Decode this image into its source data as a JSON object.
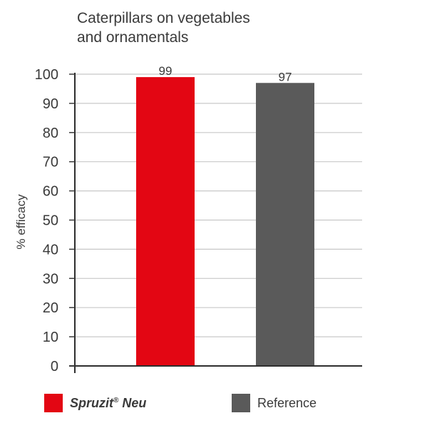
{
  "chart_data": {
    "type": "bar",
    "title_lines": [
      "Caterpillars on vegetables",
      "and ornamentals"
    ],
    "ylabel": "% efficacy",
    "xlabel": "",
    "ylim": [
      0,
      100
    ],
    "yticks": [
      0,
      10,
      20,
      30,
      40,
      50,
      60,
      70,
      80,
      90,
      100
    ],
    "grid": true,
    "legend_position": "bottom",
    "series": [
      {
        "name_main": "Spruzit",
        "name_mark": "®",
        "name_rest": " Neu",
        "value": 99,
        "color": "#e30613"
      },
      {
        "name": "Reference",
        "value": 97,
        "color": "#5a5a5a"
      }
    ]
  }
}
